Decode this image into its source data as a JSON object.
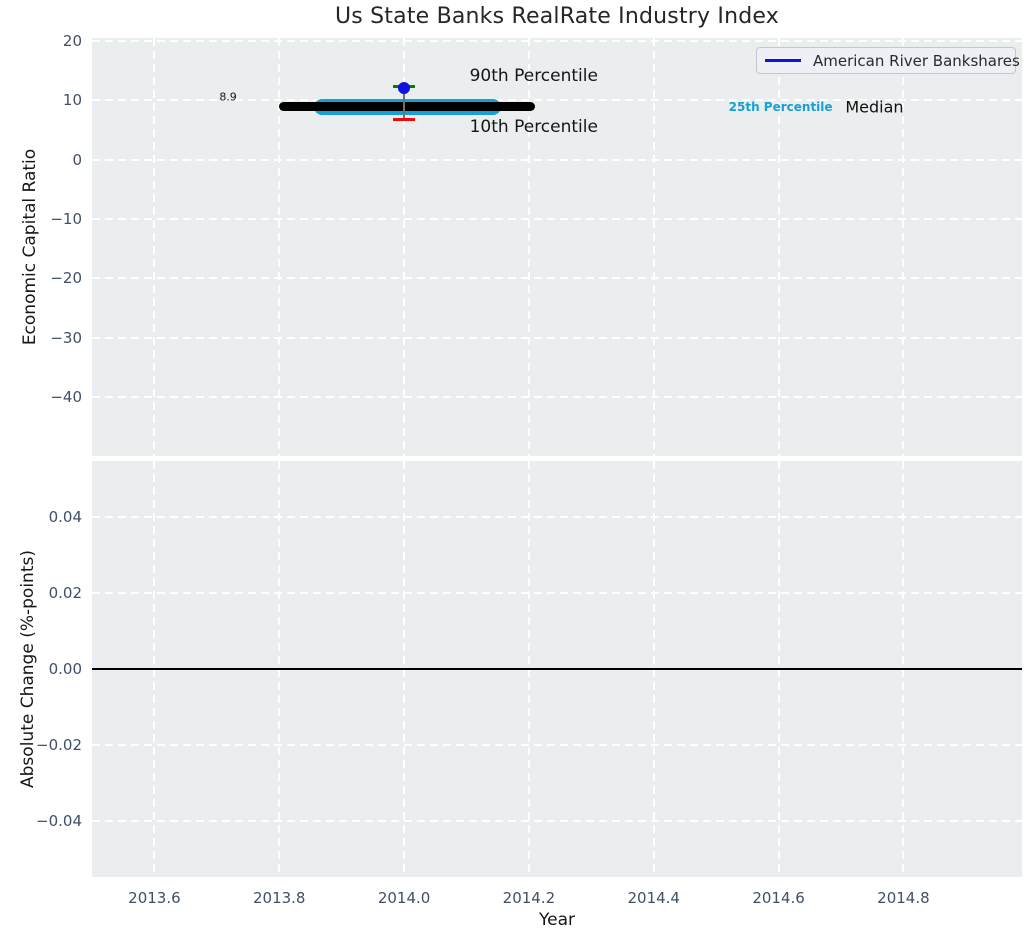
{
  "figure": {
    "title": "Us State Banks RealRate Industry Index",
    "legend": {
      "label": "American River Bankshares",
      "line_color": "#1212e0"
    }
  },
  "colors": {
    "axes_background": "#eaeeee",
    "grid": "#ffffff",
    "tick_label": "#3f5068",
    "text": "#161616",
    "median_black": "#000000",
    "percentile_band_cyan": "#16a0d6",
    "company_blue": "#1212e0",
    "cap_green": "#008000",
    "cap_red": "#f00707",
    "whisker_gray": "#707070",
    "zero_line_black": "#000000"
  },
  "chart_data": [
    {
      "type": "line",
      "title": "Us State Banks RealRate Industry Index",
      "ylabel": "Economic Capital Ratio",
      "xlabel": "",
      "xlim": [
        2013.5,
        2014.99
      ],
      "ylim": [
        -49.9,
        20.45
      ],
      "grid": true,
      "legend_position": "upper right",
      "show_xticklabels": false,
      "yticks": [
        {
          "v": 20,
          "label": "20"
        },
        {
          "v": 10,
          "label": "10"
        },
        {
          "v": 0,
          "label": "0"
        },
        {
          "v": -10,
          "label": "−10"
        },
        {
          "v": -20,
          "label": "−20"
        },
        {
          "v": -30,
          "label": "−30"
        },
        {
          "v": -40,
          "label": "−40"
        }
      ],
      "xticks": [
        {
          "v": 2013.6,
          "label": "2013.6"
        },
        {
          "v": 2013.8,
          "label": "2013.8"
        },
        {
          "v": 2014.0,
          "label": "2014.0"
        },
        {
          "v": 2014.2,
          "label": "2014.2"
        },
        {
          "v": 2014.4,
          "label": "2014.4"
        },
        {
          "v": 2014.6,
          "label": "2014.6"
        },
        {
          "v": 2014.8,
          "label": "2014.8"
        }
      ],
      "series": [
        {
          "name": "25th-percentile-band",
          "kind": "hline_segment",
          "x_start": 2013.855,
          "x_end": 2014.155,
          "y": 8.9,
          "color": "#16a0d6",
          "px_thickness": 16
        },
        {
          "name": "median-line",
          "kind": "hline_segment",
          "x_start": 2013.8,
          "x_end": 2014.21,
          "y": 8.9,
          "color": "#000000",
          "px_thickness": 9
        },
        {
          "name": "percentile-whisker",
          "kind": "errorbar",
          "x": 2014.0,
          "y_top": 12.25,
          "y_bottom": 6.7,
          "cap_color_top": "#008000",
          "cap_color_bottom": "#f00707",
          "line_color": "#707070"
        },
        {
          "name": "American River Bankshares",
          "kind": "point",
          "x": 2014.0,
          "y": 12.1,
          "color": "#1212e0"
        }
      ],
      "annotations": [
        {
          "name": "median-value-label",
          "text": "8.9",
          "x": 2013.718,
          "y": 10.6,
          "ha": "center",
          "size": 11,
          "weight": "normal",
          "color": "#161616"
        },
        {
          "name": "label-90th-percentile",
          "text": "90th Percentile",
          "x": 2014.105,
          "y": 14.1,
          "ha": "left",
          "size": 17,
          "weight": "normal",
          "color": "#161616"
        },
        {
          "name": "label-10th-percentile",
          "text": "10th Percentile",
          "x": 2014.105,
          "y": 5.4,
          "ha": "left",
          "size": 17,
          "weight": "normal",
          "color": "#161616"
        },
        {
          "name": "label-25th-percentile",
          "text": "25th Percentile",
          "x": 2014.52,
          "y": 8.9,
          "ha": "left",
          "size": 12,
          "weight": "bold",
          "color": "#16a0d6"
        },
        {
          "name": "label-median",
          "text": "Median",
          "x": 2014.707,
          "y": 8.9,
          "ha": "left",
          "size": 16,
          "weight": "normal",
          "color": "#111111"
        }
      ]
    },
    {
      "type": "line",
      "ylabel": "Absolute Change (%-points)",
      "xlabel": "Year",
      "xlim": [
        2013.5,
        2014.99
      ],
      "ylim": [
        -0.0547,
        0.0547
      ],
      "grid": true,
      "show_xticklabels": true,
      "yticks": [
        {
          "v": 0.04,
          "label": "0.04"
        },
        {
          "v": 0.02,
          "label": "0.02"
        },
        {
          "v": 0.0,
          "label": "0.00"
        },
        {
          "v": -0.02,
          "label": "−0.02"
        },
        {
          "v": -0.04,
          "label": "−0.04"
        }
      ],
      "xticks": [
        {
          "v": 2013.6,
          "label": "2013.6"
        },
        {
          "v": 2013.8,
          "label": "2013.8"
        },
        {
          "v": 2014.0,
          "label": "2014.0"
        },
        {
          "v": 2014.2,
          "label": "2014.2"
        },
        {
          "v": 2014.4,
          "label": "2014.4"
        },
        {
          "v": 2014.6,
          "label": "2014.6"
        },
        {
          "v": 2014.8,
          "label": "2014.8"
        }
      ],
      "series": [
        {
          "name": "zero-line",
          "kind": "hline_full",
          "y": 0.0,
          "color": "#000000",
          "px_thickness": 2
        }
      ],
      "annotations": []
    }
  ]
}
